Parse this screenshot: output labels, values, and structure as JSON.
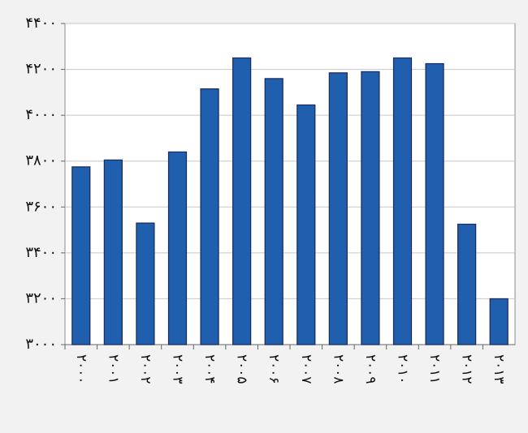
{
  "chart_data": {
    "type": "bar",
    "categories": [
      "۲۰۰۰",
      "۲۰۰۱",
      "۲۰۰۲",
      "۲۰۰۳",
      "۲۰۰۴",
      "۲۰۰۵",
      "۲۰۰۶",
      "۲۰۰۷",
      "۲۰۰۸",
      "۲۰۰۹",
      "۲۰۱۰",
      "۲۰۱۱",
      "۲۰۱۲",
      "۲۰۱۳"
    ],
    "values": [
      3775,
      3805,
      3530,
      3840,
      4115,
      4250,
      4160,
      4045,
      4185,
      4190,
      4250,
      4225,
      3525,
      3200
    ],
    "color": "#1f5fae",
    "ylim": [
      3000,
      4400
    ],
    "yticks": [
      {
        "value": 3000,
        "label": "۳۰۰۰"
      },
      {
        "value": 3200,
        "label": "۳۲۰۰"
      },
      {
        "value": 3400,
        "label": "۳۴۰۰"
      },
      {
        "value": 3600,
        "label": "۳۶۰۰"
      },
      {
        "value": 3800,
        "label": "۳۸۰۰"
      },
      {
        "value": 4000,
        "label": "۴۰۰۰"
      },
      {
        "value": 4200,
        "label": "۴۲۰۰"
      },
      {
        "value": 4400,
        "label": "۴۴۰۰"
      }
    ],
    "grid": true
  }
}
